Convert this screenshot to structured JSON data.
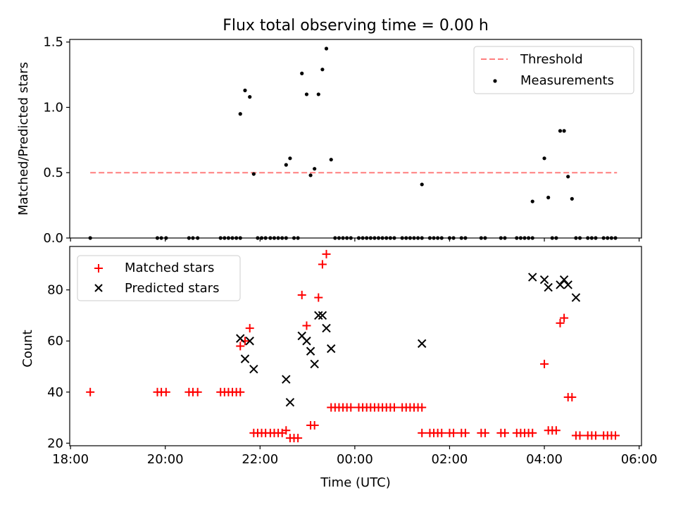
{
  "chart_data": [
    {
      "type": "scatter",
      "title": "Flux total observing time = 0.00 h",
      "xlabel": "",
      "ylabel": "Matched/Predicted stars",
      "ylim": [
        0,
        1.52
      ],
      "yticks": [
        "0.0",
        "0.5",
        "1.0",
        "1.5"
      ],
      "xlim": [
        "17:59",
        "06:03"
      ],
      "legend_position": "top-right",
      "threshold": {
        "name": "Threshold",
        "value": 0.5,
        "x_start": "18:25",
        "x_end": "05:32",
        "color": "#ff7f7f"
      },
      "series": [
        {
          "name": "Measurements",
          "color": "#000000",
          "points": [
            [
              "18:25",
              0.0
            ],
            [
              "19:50",
              0.0
            ],
            [
              "19:55",
              0.0
            ],
            [
              "20:01",
              0.0
            ],
            [
              "20:30",
              0.0
            ],
            [
              "20:35",
              0.0
            ],
            [
              "20:41",
              0.0
            ],
            [
              "21:10",
              0.0
            ],
            [
              "21:15",
              0.0
            ],
            [
              "21:20",
              0.0
            ],
            [
              "21:25",
              0.0
            ],
            [
              "21:30",
              0.0
            ],
            [
              "21:35",
              0.0
            ],
            [
              "21:35",
              0.95
            ],
            [
              "21:41",
              1.13
            ],
            [
              "21:47",
              1.08
            ],
            [
              "21:52",
              0.49
            ],
            [
              "21:57",
              0.0
            ],
            [
              "22:02",
              0.0
            ],
            [
              "22:07",
              0.0
            ],
            [
              "22:13",
              0.0
            ],
            [
              "22:18",
              0.0
            ],
            [
              "22:23",
              0.0
            ],
            [
              "22:28",
              0.0
            ],
            [
              "22:33",
              0.0
            ],
            [
              "22:33",
              0.56
            ],
            [
              "22:38",
              0.61
            ],
            [
              "22:43",
              0.0
            ],
            [
              "22:48",
              0.0
            ],
            [
              "22:53",
              1.26
            ],
            [
              "22:59",
              1.1
            ],
            [
              "23:04",
              0.48
            ],
            [
              "23:09",
              0.53
            ],
            [
              "23:14",
              1.1
            ],
            [
              "23:19",
              1.29
            ],
            [
              "23:24",
              1.45
            ],
            [
              "23:30",
              0.6
            ],
            [
              "23:35",
              0.0
            ],
            [
              "23:40",
              0.0
            ],
            [
              "23:45",
              0.0
            ],
            [
              "23:50",
              0.0
            ],
            [
              "23:55",
              0.0
            ],
            [
              "00:05",
              0.0
            ],
            [
              "00:10",
              0.0
            ],
            [
              "00:15",
              0.0
            ],
            [
              "00:20",
              0.0
            ],
            [
              "00:25",
              0.0
            ],
            [
              "00:30",
              0.0
            ],
            [
              "00:35",
              0.0
            ],
            [
              "00:40",
              0.0
            ],
            [
              "00:45",
              0.0
            ],
            [
              "00:50",
              0.0
            ],
            [
              "01:00",
              0.0
            ],
            [
              "01:05",
              0.0
            ],
            [
              "01:10",
              0.0
            ],
            [
              "01:15",
              0.0
            ],
            [
              "01:20",
              0.0
            ],
            [
              "01:25",
              0.0
            ],
            [
              "01:25",
              0.41
            ],
            [
              "01:35",
              0.0
            ],
            [
              "01:40",
              0.0
            ],
            [
              "01:45",
              0.0
            ],
            [
              "01:50",
              0.0
            ],
            [
              "02:00",
              0.0
            ],
            [
              "02:05",
              0.0
            ],
            [
              "02:15",
              0.0
            ],
            [
              "02:20",
              0.0
            ],
            [
              "02:40",
              0.0
            ],
            [
              "02:45",
              0.0
            ],
            [
              "03:05",
              0.0
            ],
            [
              "03:10",
              0.0
            ],
            [
              "03:25",
              0.0
            ],
            [
              "03:30",
              0.0
            ],
            [
              "03:35",
              0.0
            ],
            [
              "03:40",
              0.0
            ],
            [
              "03:45",
              0.0
            ],
            [
              "03:45",
              0.28
            ],
            [
              "04:00",
              0.61
            ],
            [
              "04:05",
              0.31
            ],
            [
              "04:10",
              0.0
            ],
            [
              "04:15",
              0.0
            ],
            [
              "04:20",
              0.82
            ],
            [
              "04:25",
              0.82
            ],
            [
              "04:30",
              0.47
            ],
            [
              "04:35",
              0.3
            ],
            [
              "04:40",
              0.0
            ],
            [
              "04:45",
              0.0
            ],
            [
              "04:55",
              0.0
            ],
            [
              "05:00",
              0.0
            ],
            [
              "05:05",
              0.0
            ],
            [
              "05:15",
              0.0
            ],
            [
              "05:20",
              0.0
            ],
            [
              "05:25",
              0.0
            ],
            [
              "05:30",
              0.0
            ]
          ]
        }
      ]
    },
    {
      "type": "scatter",
      "title": "",
      "xlabel": "Time (UTC)",
      "ylabel": "Count",
      "ylim": [
        19,
        97
      ],
      "yticks": [
        "20",
        "40",
        "60",
        "80"
      ],
      "xlim": [
        "17:59",
        "06:03"
      ],
      "xticks": [
        "18:00",
        "20:00",
        "22:00",
        "00:00",
        "02:00",
        "04:00",
        "06:00"
      ],
      "legend_position": "top-left",
      "series": [
        {
          "name": "Matched stars",
          "marker": "plus",
          "color": "#ff0000",
          "points": [
            [
              "18:25",
              40
            ],
            [
              "19:50",
              40
            ],
            [
              "19:55",
              40
            ],
            [
              "20:01",
              40
            ],
            [
              "20:30",
              40
            ],
            [
              "20:35",
              40
            ],
            [
              "20:41",
              40
            ],
            [
              "21:10",
              40
            ],
            [
              "21:15",
              40
            ],
            [
              "21:20",
              40
            ],
            [
              "21:25",
              40
            ],
            [
              "21:30",
              40
            ],
            [
              "21:35",
              40
            ],
            [
              "21:35",
              58
            ],
            [
              "21:41",
              60
            ],
            [
              "21:47",
              65
            ],
            [
              "21:52",
              24
            ],
            [
              "21:57",
              24
            ],
            [
              "22:02",
              24
            ],
            [
              "22:07",
              24
            ],
            [
              "22:13",
              24
            ],
            [
              "22:18",
              24
            ],
            [
              "22:23",
              24
            ],
            [
              "22:28",
              24
            ],
            [
              "22:33",
              25
            ],
            [
              "22:38",
              22
            ],
            [
              "22:43",
              22
            ],
            [
              "22:48",
              22
            ],
            [
              "22:53",
              78
            ],
            [
              "22:59",
              66
            ],
            [
              "23:04",
              27
            ],
            [
              "23:09",
              27
            ],
            [
              "23:14",
              77
            ],
            [
              "23:19",
              90
            ],
            [
              "23:24",
              94
            ],
            [
              "23:30",
              34
            ],
            [
              "23:35",
              34
            ],
            [
              "23:40",
              34
            ],
            [
              "23:45",
              34
            ],
            [
              "23:50",
              34
            ],
            [
              "23:55",
              34
            ],
            [
              "00:05",
              34
            ],
            [
              "00:10",
              34
            ],
            [
              "00:15",
              34
            ],
            [
              "00:20",
              34
            ],
            [
              "00:25",
              34
            ],
            [
              "00:30",
              34
            ],
            [
              "00:35",
              34
            ],
            [
              "00:40",
              34
            ],
            [
              "00:45",
              34
            ],
            [
              "00:50",
              34
            ],
            [
              "01:00",
              34
            ],
            [
              "01:05",
              34
            ],
            [
              "01:10",
              34
            ],
            [
              "01:15",
              34
            ],
            [
              "01:20",
              34
            ],
            [
              "01:25",
              34
            ],
            [
              "01:25",
              24
            ],
            [
              "01:35",
              24
            ],
            [
              "01:40",
              24
            ],
            [
              "01:45",
              24
            ],
            [
              "01:50",
              24
            ],
            [
              "02:00",
              24
            ],
            [
              "02:05",
              24
            ],
            [
              "02:15",
              24
            ],
            [
              "02:20",
              24
            ],
            [
              "02:40",
              24
            ],
            [
              "02:45",
              24
            ],
            [
              "03:05",
              24
            ],
            [
              "03:10",
              24
            ],
            [
              "03:25",
              24
            ],
            [
              "03:30",
              24
            ],
            [
              "03:35",
              24
            ],
            [
              "03:40",
              24
            ],
            [
              "03:45",
              24
            ],
            [
              "04:00",
              51
            ],
            [
              "04:05",
              25
            ],
            [
              "04:10",
              25
            ],
            [
              "04:15",
              25
            ],
            [
              "04:20",
              67
            ],
            [
              "04:25",
              69
            ],
            [
              "04:30",
              38
            ],
            [
              "04:35",
              38
            ],
            [
              "04:40",
              23
            ],
            [
              "04:45",
              23
            ],
            [
              "04:55",
              23
            ],
            [
              "05:00",
              23
            ],
            [
              "05:05",
              23
            ],
            [
              "05:15",
              23
            ],
            [
              "05:20",
              23
            ],
            [
              "05:25",
              23
            ],
            [
              "05:30",
              23
            ]
          ]
        },
        {
          "name": "Predicted stars",
          "marker": "x",
          "color": "#000000",
          "points": [
            [
              "21:35",
              61
            ],
            [
              "21:41",
              53
            ],
            [
              "21:47",
              60
            ],
            [
              "21:52",
              49
            ],
            [
              "22:33",
              45
            ],
            [
              "22:38",
              36
            ],
            [
              "22:53",
              62
            ],
            [
              "22:59",
              60
            ],
            [
              "23:04",
              56
            ],
            [
              "23:09",
              51
            ],
            [
              "23:14",
              70
            ],
            [
              "23:19",
              70
            ],
            [
              "23:24",
              65
            ],
            [
              "23:30",
              57
            ],
            [
              "01:25",
              59
            ],
            [
              "03:45",
              85
            ],
            [
              "04:00",
              84
            ],
            [
              "04:05",
              81
            ],
            [
              "04:20",
              82
            ],
            [
              "04:25",
              84
            ],
            [
              "04:30",
              82
            ],
            [
              "04:40",
              77
            ]
          ]
        }
      ]
    }
  ]
}
